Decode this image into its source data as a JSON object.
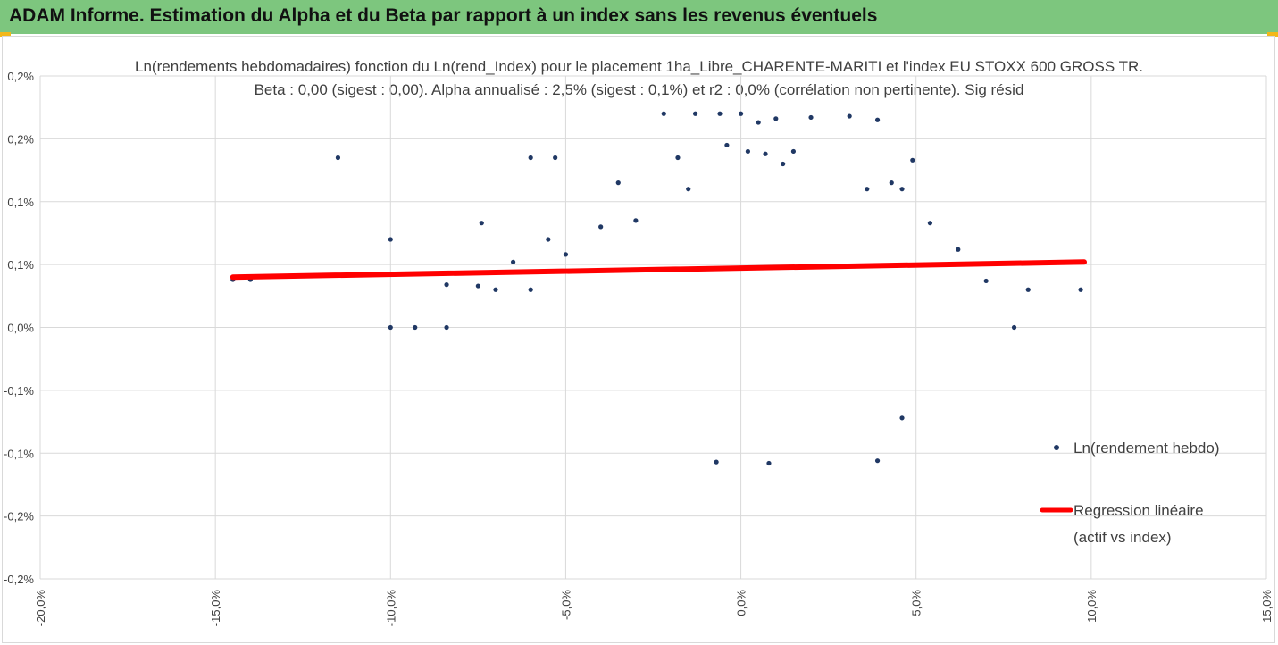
{
  "header": {
    "title": "ADAM Informe. Estimation du Alpha et du Beta par rapport à un index sans les revenus éventuels",
    "accent_color": "#7dc67e",
    "corner_color": "#f3b81a"
  },
  "chart_data": {
    "type": "scatter",
    "title_line1": "Ln(rendements hebdomadaires) fonction du Ln(rend_Index) pour le placement 1ha_Libre_CHARENTE-MARITI et l'index EU STOXX 600 GROSS TR.",
    "title_line2": "Beta : 0,00 (sigest : 0,00). Alpha annualisé : 2,5% (sigest : 0,1%) et r2 : 0,0% (corrélation non pertinente). Sig résid",
    "xlim": [
      -20,
      15
    ],
    "ylim": [
      -0.2,
      0.2
    ],
    "x_ticks": [
      "-20,0%",
      "-15,0%",
      "-10,0%",
      "-5,0%",
      "0,0%",
      "5,0%",
      "10,0%",
      "15,0%"
    ],
    "y_ticks": [
      "0,2%",
      "0,2%",
      "0,1%",
      "0,1%",
      "0,0%",
      "-0,1%",
      "-0,1%",
      "-0,2%",
      "-0,2%"
    ],
    "grid": true,
    "legend_position": "right",
    "series": [
      {
        "name": "Ln(rendement hebdo)",
        "kind": "points",
        "color": "#203864",
        "points": [
          [
            -11.5,
            0.135
          ],
          [
            -14.5,
            0.038
          ],
          [
            -14.0,
            0.038
          ],
          [
            -10.0,
            0.07
          ],
          [
            -8.4,
            0.034
          ],
          [
            -7.5,
            0.033
          ],
          [
            -7.4,
            0.083
          ],
          [
            -7.0,
            0.03
          ],
          [
            -6.5,
            0.052
          ],
          [
            -6.0,
            0.135
          ],
          [
            -5.3,
            0.135
          ],
          [
            -5.5,
            0.07
          ],
          [
            -5.0,
            0.058
          ],
          [
            -6.0,
            0.03
          ],
          [
            -4.0,
            0.08
          ],
          [
            -3.0,
            0.085
          ],
          [
            -3.5,
            0.115
          ],
          [
            -1.5,
            0.11
          ],
          [
            1.2,
            0.13
          ],
          [
            3.6,
            0.11
          ],
          [
            4.3,
            0.115
          ],
          [
            4.6,
            0.11
          ],
          [
            4.9,
            0.133
          ],
          [
            5.4,
            0.083
          ],
          [
            6.2,
            0.062
          ],
          [
            7.0,
            0.037
          ],
          [
            8.2,
            0.03
          ],
          [
            9.7,
            0.03
          ],
          [
            -10.0,
            0.0
          ],
          [
            -9.3,
            0.0
          ],
          [
            -8.4,
            0.0
          ],
          [
            7.8,
            0.0
          ],
          [
            4.6,
            -0.072
          ],
          [
            3.9,
            -0.106
          ],
          [
            -0.7,
            -0.107
          ],
          [
            0.8,
            -0.108
          ],
          [
            -2.2,
            0.17
          ],
          [
            -1.3,
            0.17
          ],
          [
            -0.6,
            0.17
          ],
          [
            0.0,
            0.17
          ],
          [
            0.5,
            0.163
          ],
          [
            1.0,
            0.166
          ],
          [
            2.0,
            0.167
          ],
          [
            3.1,
            0.168
          ],
          [
            3.9,
            0.165
          ],
          [
            -0.4,
            0.145
          ],
          [
            0.2,
            0.14
          ],
          [
            0.7,
            0.138
          ],
          [
            1.5,
            0.14
          ],
          [
            -1.8,
            0.135
          ]
        ]
      },
      {
        "name": "Regression linéaire\n(actif vs index)",
        "kind": "line",
        "color": "#ff0000",
        "points": [
          [
            -14.5,
            0.04
          ],
          [
            9.8,
            0.052
          ]
        ]
      }
    ]
  },
  "legend": {
    "scatter_label": "Ln(rendement hebdo)",
    "line_label_1": "Regression linéaire",
    "line_label_2": "(actif vs index)"
  }
}
